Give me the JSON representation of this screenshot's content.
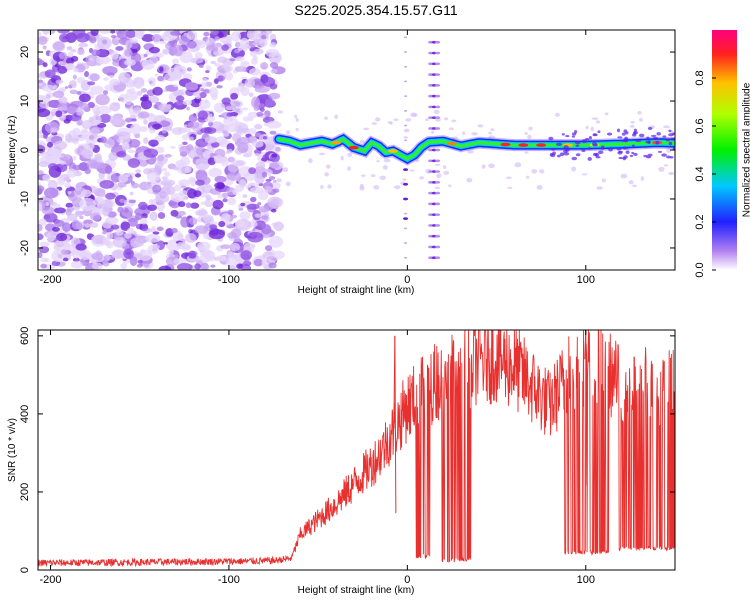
{
  "title": "S225.2025.354.15.57.G11",
  "chart_data": [
    {
      "type": "heatmap",
      "name": "spectrogram",
      "xlabel": "Height of straight line (km)",
      "ylabel": "Frequency (Hz)",
      "xlim": [
        -207,
        150
      ],
      "ylim": [
        -24.5,
        24.5
      ],
      "xticks": [
        -200,
        -100,
        0,
        100
      ],
      "yticks": [
        -20,
        -10,
        0,
        10,
        20
      ],
      "noise_region": [
        -207,
        -72
      ],
      "peak_trace": {
        "x": [
          -72,
          -66,
          -60,
          -54,
          -48,
          -42,
          -36,
          -30,
          -24,
          -20,
          -16,
          -12,
          -8,
          -4,
          0,
          4,
          8,
          12,
          20,
          30,
          40,
          60,
          80,
          100,
          120,
          140,
          150
        ],
        "y": [
          2.2,
          1.8,
          1.0,
          1.4,
          1.8,
          1.2,
          2.2,
          0.5,
          -0.2,
          1.5,
          0.8,
          -0.5,
          -0.2,
          -1.0,
          -1.8,
          -1.0,
          0.6,
          1.6,
          1.8,
          0.8,
          1.5,
          1.0,
          1.0,
          1.0,
          1.2,
          1.5,
          1.4
        ]
      },
      "colorbar": {
        "label": "Normalized spectral amplitude",
        "range": [
          0,
          1
        ],
        "ticks": [
          "0.0",
          "0.2",
          "0.4",
          "0.6",
          "0.8"
        ]
      }
    },
    {
      "type": "line",
      "name": "snr",
      "xlabel": "Height of straight line (km)",
      "ylabel": "SNR (10 * v/v)",
      "xlim": [
        -207,
        150
      ],
      "ylim": [
        0,
        615
      ],
      "xticks": [
        -200,
        -100,
        0,
        100
      ],
      "yticks": [
        0,
        200,
        400,
        600
      ],
      "color": "#e8302f",
      "envelope": {
        "x": [
          -207,
          -150,
          -100,
          -75,
          -65,
          -60,
          -50,
          -40,
          -30,
          -20,
          -15,
          -10,
          -5,
          0,
          10,
          20,
          30,
          35,
          40,
          50,
          60,
          70,
          80,
          90,
          100,
          110,
          120,
          130,
          140,
          150
        ],
        "y": [
          18,
          20,
          22,
          24,
          30,
          90,
          130,
          170,
          220,
          270,
          300,
          340,
          380,
          420,
          460,
          500,
          520,
          530,
          540,
          545,
          520,
          470,
          420,
          500,
          540,
          520,
          470,
          480,
          460,
          475
        ]
      },
      "dropouts": [
        {
          "from": 5,
          "to": 13,
          "y": 30
        },
        {
          "from": 19,
          "to": 36,
          "y": 20
        },
        {
          "from": 88,
          "to": 113,
          "y": 40
        },
        {
          "from": 118,
          "to": 150,
          "y": 50
        }
      ],
      "spikes": [
        {
          "x": -7,
          "y": 600
        },
        {
          "x": 100,
          "y": 615
        }
      ]
    }
  ]
}
